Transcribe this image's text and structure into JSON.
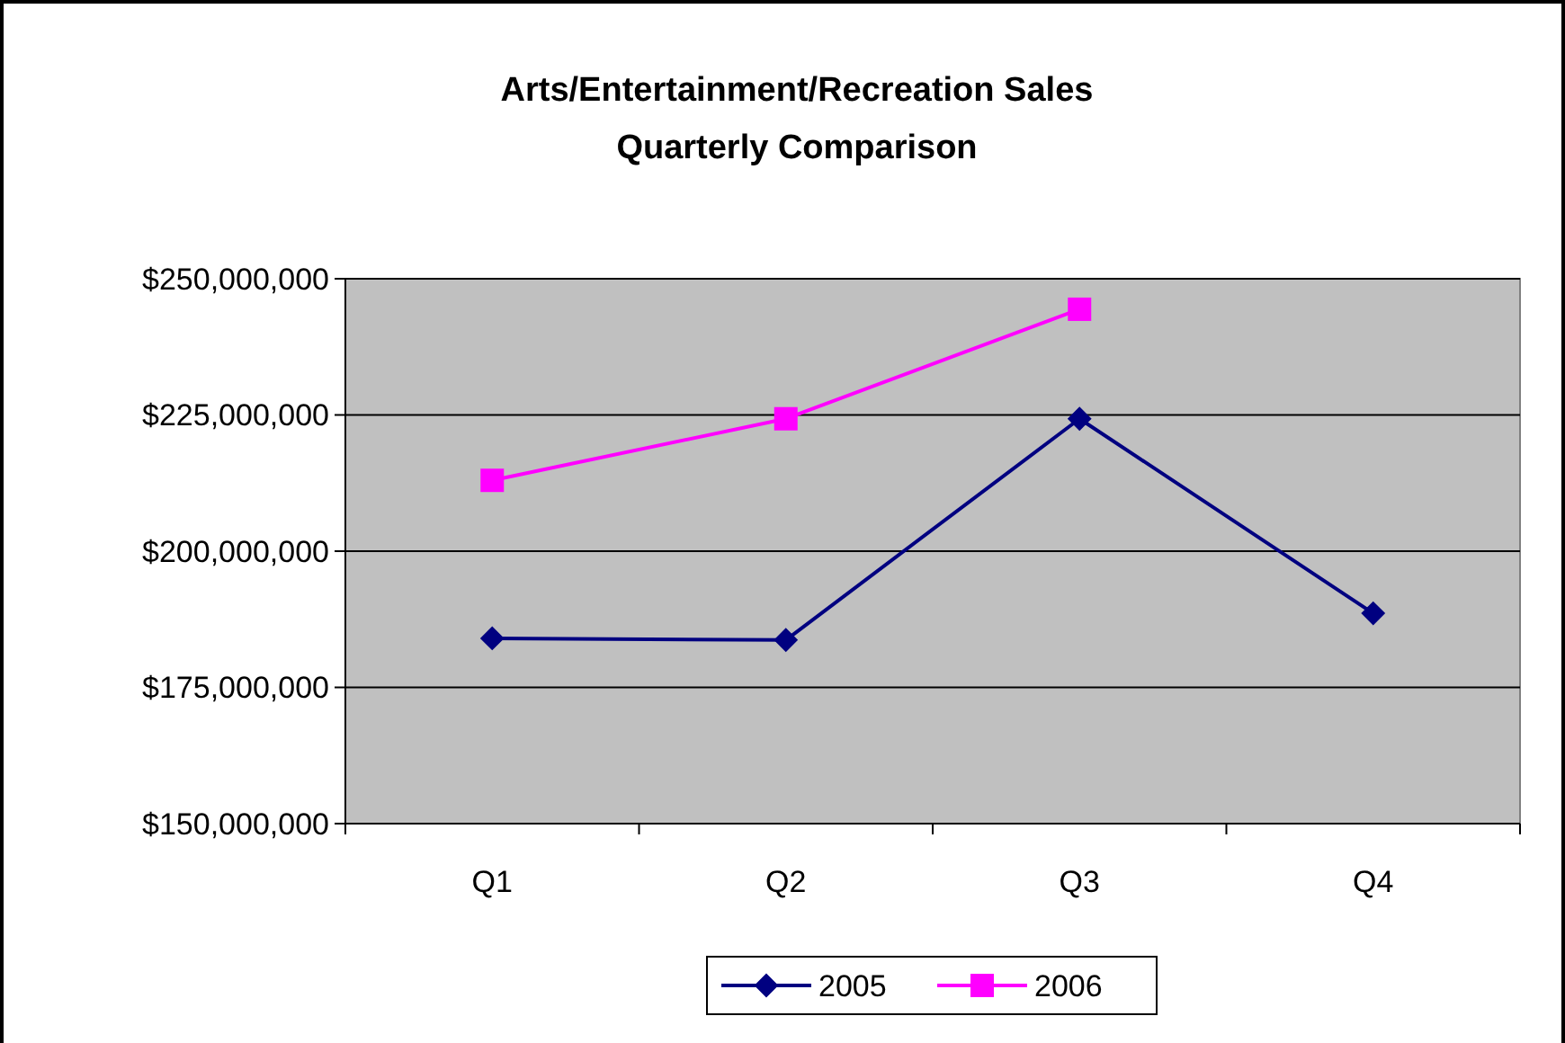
{
  "chart_data": {
    "type": "line",
    "title": "Arts/Entertainment/Recreation Sales",
    "subtitle": "Quarterly Comparison",
    "categories": [
      "Q1",
      "Q2",
      "Q3",
      "Q4"
    ],
    "series": [
      {
        "name": "2005",
        "color": "#000080",
        "marker": "diamond",
        "values": [
          184000000,
          183700000,
          224300000,
          188600000
        ]
      },
      {
        "name": "2006",
        "color": "#ff00ff",
        "marker": "square",
        "values": [
          213000000,
          224300000,
          244400000,
          null
        ]
      }
    ],
    "ylim": [
      150000000,
      250000000
    ],
    "yticks": [
      {
        "value": 150000000,
        "label": "$150,000,000"
      },
      {
        "value": 175000000,
        "label": "$175,000,000"
      },
      {
        "value": 200000000,
        "label": "$200,000,000"
      },
      {
        "value": 225000000,
        "label": "$225,000,000"
      },
      {
        "value": 250000000,
        "label": "$250,000,000"
      }
    ],
    "grid": "y",
    "legend": "bottom",
    "line_style": "solid"
  }
}
